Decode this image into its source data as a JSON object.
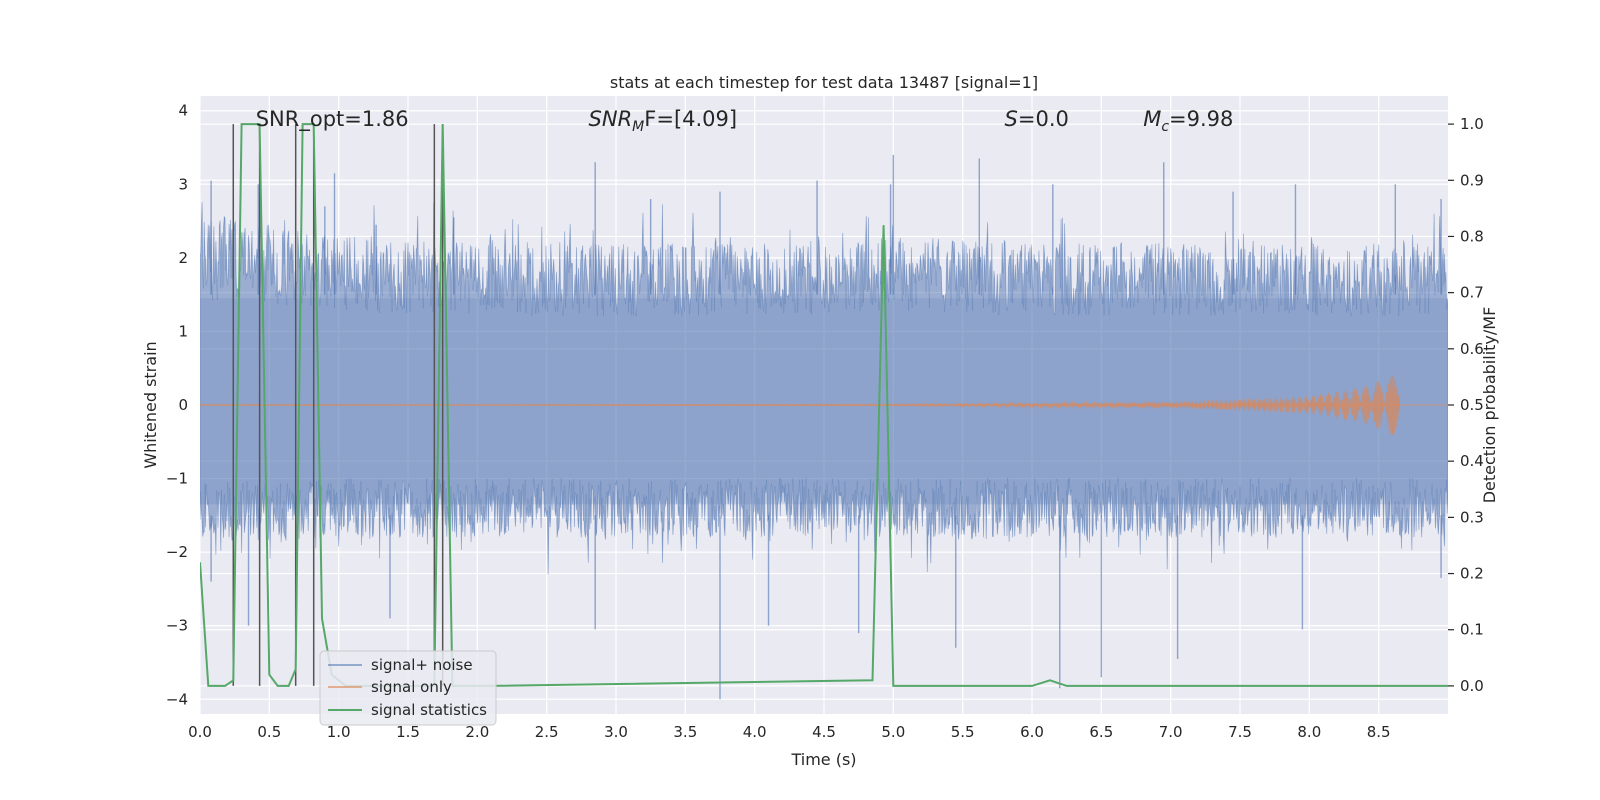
{
  "chart_data": {
    "type": "line",
    "title": "stats at each timestep for test data 13487 [signal=1]",
    "xlabel": "Time (s)",
    "ylabel": "Whitened strain",
    "y2label": "Detection probability/MF",
    "xlim": [
      0,
      9.0
    ],
    "ylim": [
      -4.2,
      4.2
    ],
    "y2lim": [
      -0.05,
      1.05
    ],
    "xticks": [
      0.0,
      0.5,
      1.0,
      1.5,
      2.0,
      2.5,
      3.0,
      3.5,
      4.0,
      4.5,
      5.0,
      5.5,
      6.0,
      6.5,
      7.0,
      7.5,
      8.0,
      8.5
    ],
    "xtick_labels": [
      "0.0",
      "0.5",
      "1.0",
      "1.5",
      "2.0",
      "2.5",
      "3.0",
      "3.5",
      "4.0",
      "4.5",
      "5.0",
      "5.5",
      "6.0",
      "6.5",
      "7.0",
      "7.5",
      "8.0",
      "8.5"
    ],
    "yticks": [
      4,
      3,
      2,
      1,
      0,
      -1,
      -2,
      -3,
      -4
    ],
    "ytick_labels": [
      "4",
      "3",
      "2",
      "1",
      "0",
      "−1",
      "−2",
      "−3",
      "−4"
    ],
    "y2ticks": [
      1.0,
      0.9,
      0.8,
      0.7,
      0.6,
      0.5,
      0.4,
      0.3,
      0.2,
      0.1,
      0.0
    ],
    "y2tick_labels": [
      "1.0",
      "0.9",
      "0.8",
      "0.7",
      "0.6",
      "0.5",
      "0.4",
      "0.3",
      "0.2",
      "0.1",
      "0.0"
    ],
    "grid": true,
    "legend_position": "bottom-left",
    "series": [
      {
        "name": "signal+ noise",
        "color": "#4c72b0",
        "axis": "left",
        "band_upper": [
          [
            0.0,
            2.6
          ],
          [
            1.0,
            2.3
          ],
          [
            2.0,
            2.2
          ],
          [
            3.0,
            2.2
          ],
          [
            4.0,
            2.2
          ],
          [
            5.0,
            2.3
          ],
          [
            6.0,
            2.2
          ],
          [
            7.0,
            2.2
          ],
          [
            8.0,
            2.2
          ],
          [
            9.0,
            2.2
          ]
        ],
        "band_lower": [
          [
            0.0,
            -1.9
          ],
          [
            1.0,
            -1.8
          ],
          [
            2.0,
            -1.8
          ],
          [
            3.0,
            -1.8
          ],
          [
            4.0,
            -1.8
          ],
          [
            5.0,
            -1.8
          ],
          [
            6.0,
            -1.8
          ],
          [
            7.0,
            -1.8
          ],
          [
            8.0,
            -1.8
          ],
          [
            9.0,
            -1.8
          ]
        ],
        "peaks": [
          [
            0.08,
            3.05
          ],
          [
            0.42,
            3.0
          ],
          [
            0.9,
            2.7
          ],
          [
            0.97,
            3.15
          ],
          [
            1.27,
            2.45
          ],
          [
            1.83,
            2.55
          ],
          [
            2.85,
            3.3
          ],
          [
            3.25,
            2.8
          ],
          [
            3.75,
            2.9
          ],
          [
            4.45,
            3.05
          ],
          [
            4.98,
            3.0
          ],
          [
            5.0,
            3.4
          ],
          [
            5.62,
            3.35
          ],
          [
            6.15,
            3.0
          ],
          [
            6.95,
            3.3
          ],
          [
            7.45,
            2.9
          ],
          [
            7.9,
            3.0
          ],
          [
            8.62,
            3.0
          ],
          [
            8.95,
            2.8
          ]
        ],
        "troughs": [
          [
            0.08,
            -2.4
          ],
          [
            0.35,
            -3.0
          ],
          [
            1.37,
            -2.9
          ],
          [
            2.85,
            -3.05
          ],
          [
            3.75,
            -4.0
          ],
          [
            4.1,
            -3.0
          ],
          [
            4.75,
            -3.1
          ],
          [
            5.45,
            -3.3
          ],
          [
            6.2,
            -3.85
          ],
          [
            6.5,
            -3.7
          ],
          [
            7.05,
            -3.45
          ],
          [
            7.95,
            -3.05
          ],
          [
            8.95,
            -2.35
          ]
        ]
      },
      {
        "name": "signal only",
        "color": "#dd8452",
        "axis": "left",
        "envelope": [
          [
            0.0,
            0.0
          ],
          [
            5.0,
            0.01
          ],
          [
            7.0,
            0.04
          ],
          [
            8.0,
            0.12
          ],
          [
            8.4,
            0.25
          ],
          [
            8.65,
            0.45
          ]
        ]
      },
      {
        "name": "signal statistics",
        "color": "#55a868",
        "axis": "right",
        "points": [
          [
            0.0,
            0.22
          ],
          [
            0.06,
            0.0
          ],
          [
            0.18,
            0.0
          ],
          [
            0.24,
            0.01
          ],
          [
            0.3,
            1.0
          ],
          [
            0.43,
            1.0
          ],
          [
            0.5,
            0.02
          ],
          [
            0.56,
            0.0
          ],
          [
            0.64,
            0.0
          ],
          [
            0.69,
            0.03
          ],
          [
            0.74,
            1.0
          ],
          [
            0.82,
            1.0
          ],
          [
            0.88,
            0.12
          ],
          [
            0.95,
            0.02
          ],
          [
            1.05,
            0.0
          ],
          [
            1.69,
            0.0
          ],
          [
            1.75,
            1.0
          ],
          [
            1.82,
            0.0
          ],
          [
            2.1,
            0.0
          ],
          [
            4.85,
            0.01
          ],
          [
            4.93,
            0.82
          ],
          [
            5.0,
            0.0
          ],
          [
            6.0,
            0.0
          ],
          [
            6.13,
            0.01
          ],
          [
            6.25,
            0.0
          ],
          [
            8.5,
            0.0
          ],
          [
            9.0,
            0.0
          ]
        ]
      }
    ],
    "vlines": {
      "color": "#555555",
      "x": [
        0.24,
        0.43,
        0.69,
        0.82,
        1.69,
        1.75
      ],
      "y2_top": 1.0
    },
    "annotations": [
      {
        "text": "SNR_opt=1.86",
        "x": 0.2,
        "y": 3.85
      },
      {
        "main": "SNR",
        "sub": "M",
        "rest": "F=[4.09]",
        "x": 2.6,
        "y": 3.85
      },
      {
        "main": "S",
        "sub": "",
        "rest": "=0.0",
        "x": 5.6,
        "y": 3.85
      },
      {
        "main": "M",
        "sub": "c",
        "rest": "=9.98",
        "x": 6.6,
        "y": 3.85
      }
    ]
  }
}
